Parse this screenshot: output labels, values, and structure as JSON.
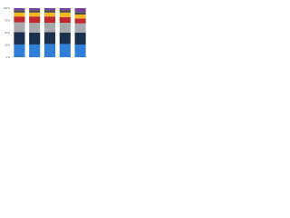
{
  "chart_data": {
    "type": "stacked-bar",
    "categories": [
      null,
      null,
      null,
      null,
      null
    ],
    "series": [
      {
        "color": "#2f7ed8",
        "values": [
          26,
          26,
          27,
          27,
          26
        ]
      },
      {
        "color": "#1b2f4e",
        "values": [
          25,
          24,
          24,
          23,
          24
        ]
      },
      {
        "color": "#a7a9ac",
        "values": [
          20,
          20,
          19,
          20,
          19
        ]
      },
      {
        "color": "#c0282d",
        "values": [
          12,
          13,
          13,
          12,
          10
        ]
      },
      {
        "color": "#f2b824",
        "values": [
          8,
          8,
          8,
          9,
          8
        ]
      },
      {
        "color": "#4d4d4d",
        "values": [
          5,
          5,
          5,
          5,
          5
        ]
      },
      {
        "color": "#7b3f99",
        "values": [
          4,
          4,
          4,
          4,
          8
        ]
      }
    ],
    "ylim": [
      0,
      100
    ],
    "yticks": [
      {
        "value": 0,
        "label": "0%"
      },
      {
        "value": 25,
        "label": "25%"
      },
      {
        "value": 50,
        "label": "50%"
      },
      {
        "value": 75,
        "label": "75%"
      },
      {
        "value": 100,
        "label": "100%"
      }
    ],
    "grid": true
  }
}
